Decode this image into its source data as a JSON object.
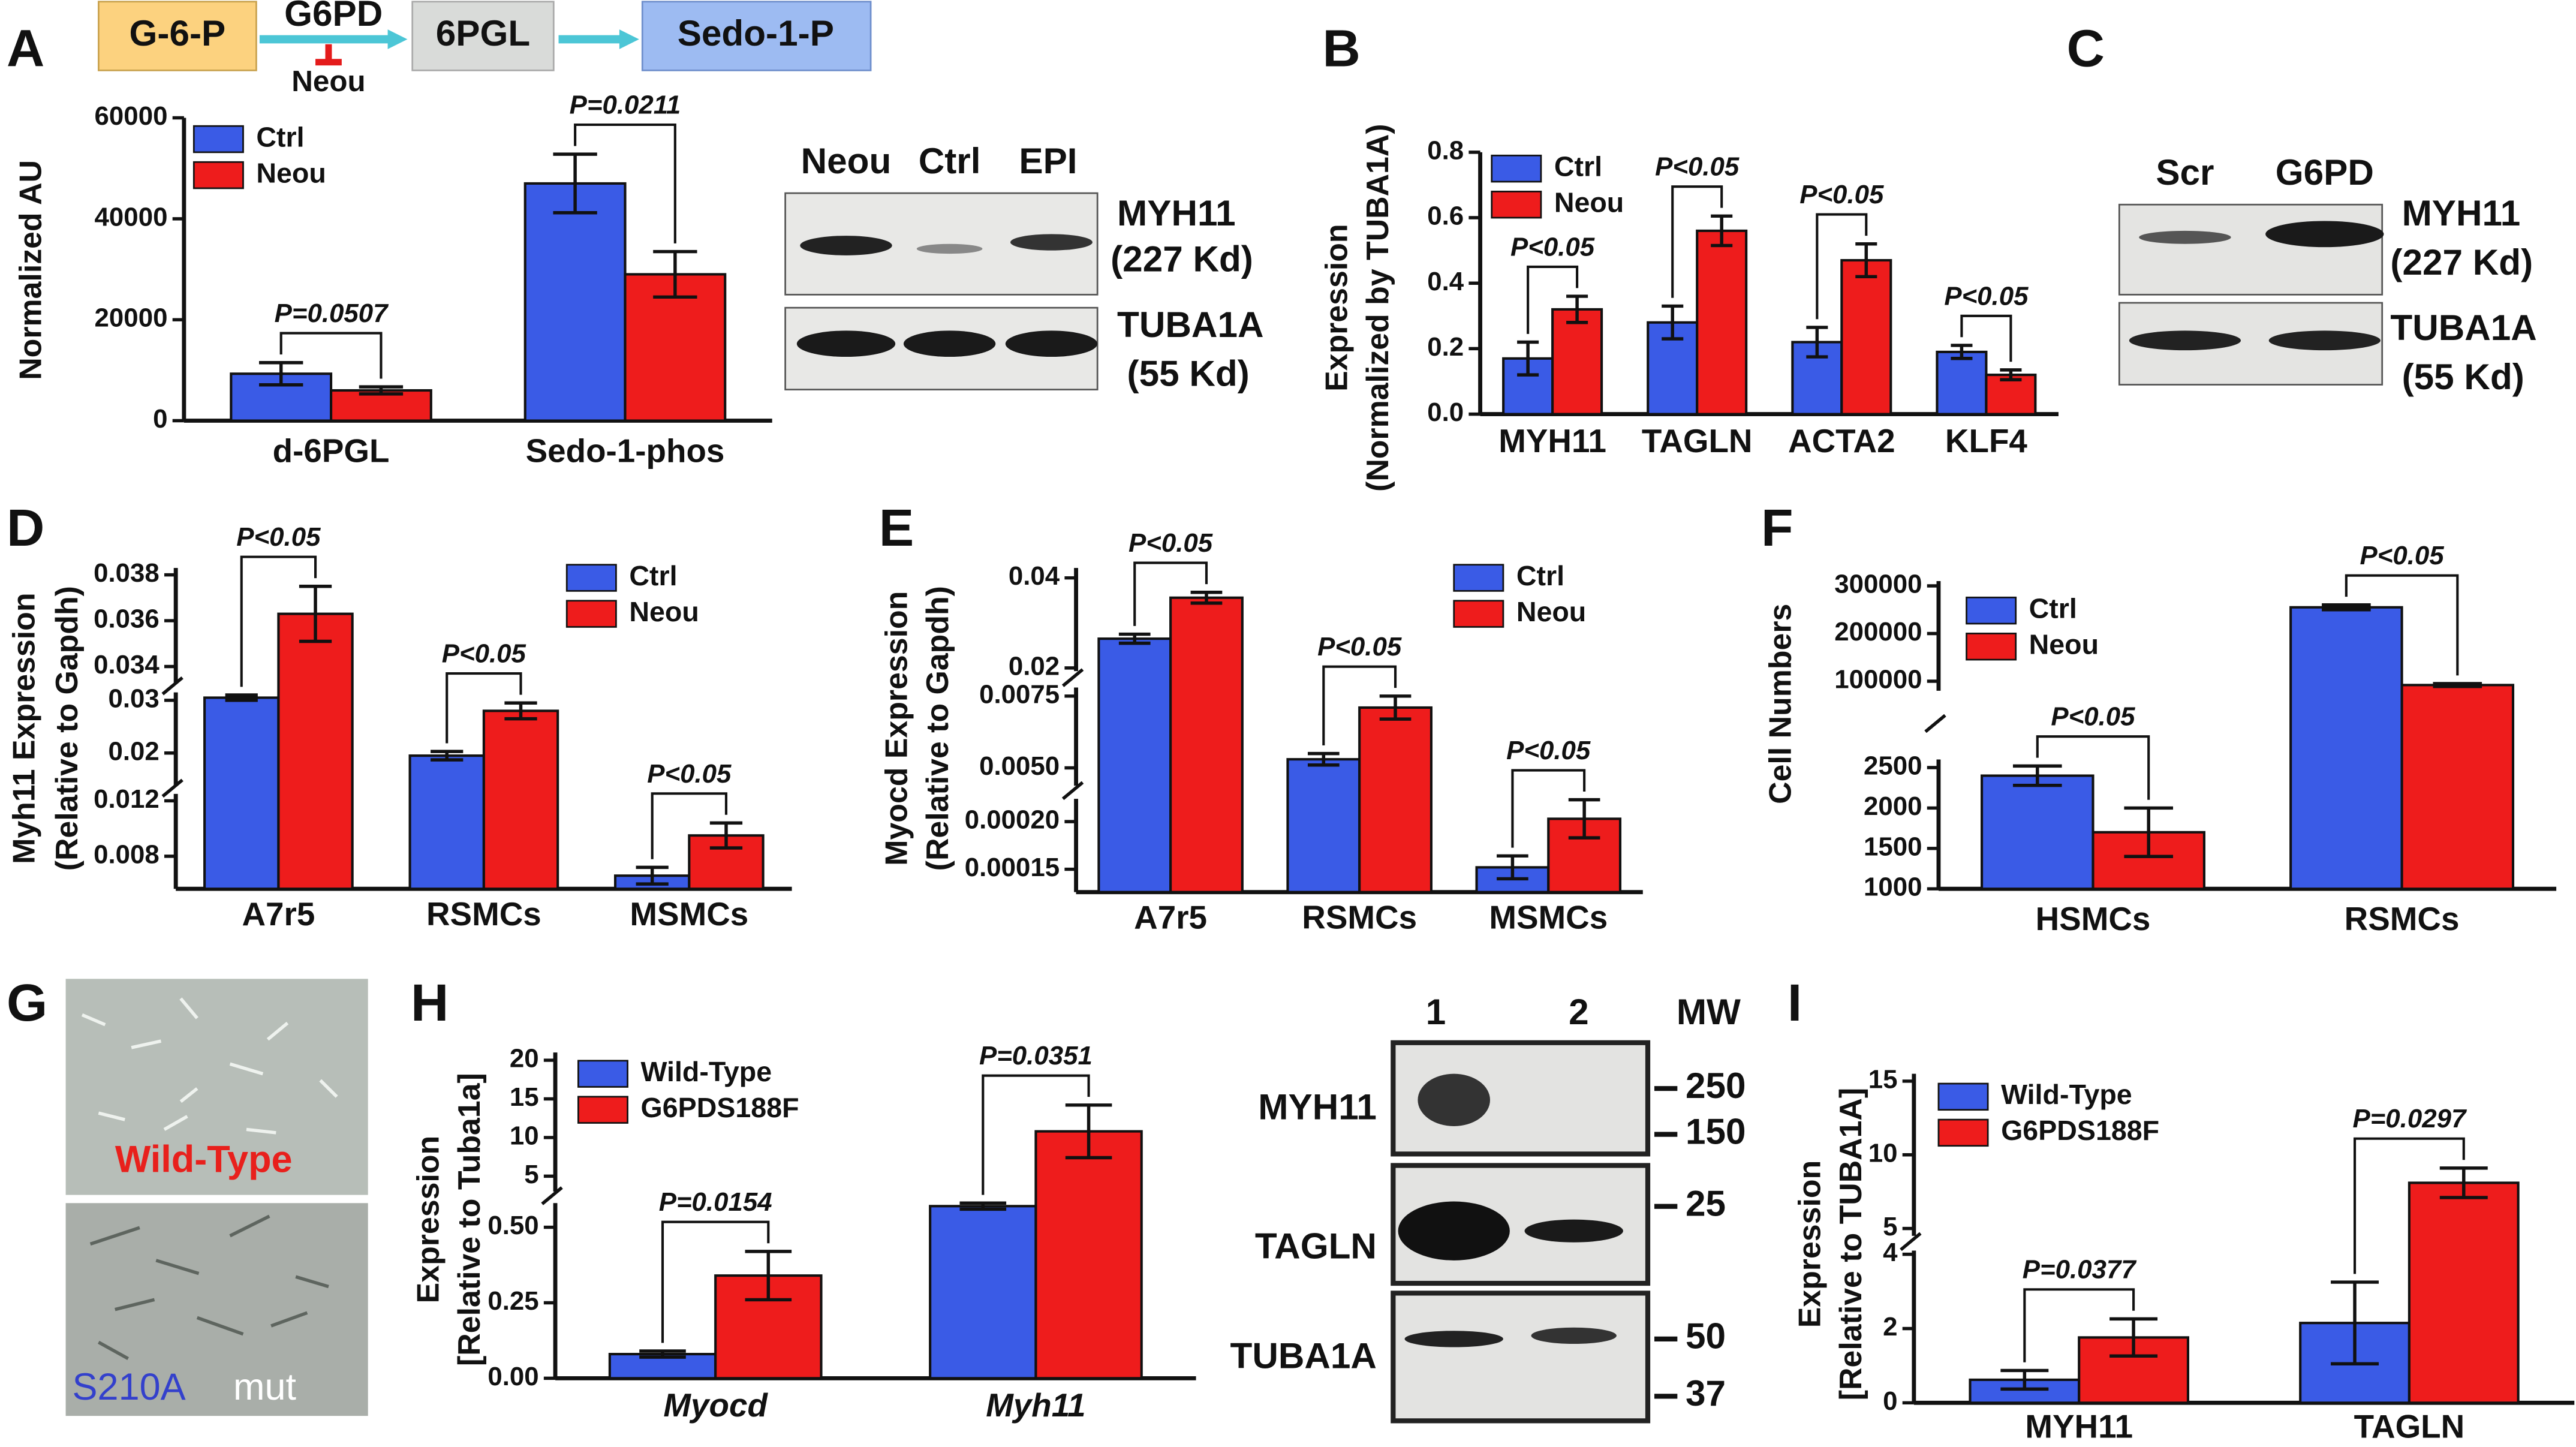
{
  "panel_labels": [
    "A",
    "B",
    "C",
    "D",
    "E",
    "F",
    "G",
    "H",
    "I"
  ],
  "pathway": {
    "nodes": [
      "G-6-P",
      "6PGL",
      "Sedo-1-P"
    ],
    "enzyme": "G6PD",
    "inhibitor": "Neou"
  },
  "blots": [
    {
      "lanes": [
        "Neou",
        "Ctrl",
        "EPI"
      ],
      "labels": [
        "MYH11",
        "(227 Kd)",
        "TUBA1A",
        "(55 Kd)"
      ]
    },
    {
      "lanes": [
        "Scr",
        "G6PD"
      ],
      "labels": [
        "MYH11",
        "(227 Kd)",
        "TUBA1A",
        "(55 Kd)"
      ]
    },
    {
      "lanes": [
        "1",
        "2"
      ],
      "mw_title": "MW",
      "labels": [
        "MYH11",
        "TAGLN",
        "TUBA1A"
      ],
      "mw_markers": [
        250,
        150,
        25,
        50,
        37
      ]
    }
  ],
  "micrographs": {
    "top": "Wild-Type",
    "bottom": [
      "S210A",
      "mut"
    ]
  },
  "chart_data": [
    {
      "type": "bar",
      "ylabel": [
        "Normalized AU"
      ],
      "categories": [
        "d-6PGL",
        "Sedo-1-phos"
      ],
      "series": [
        {
          "name": "Ctrl",
          "color": "#3a5be6",
          "values": [
            9300,
            47000
          ],
          "errors": [
            2200,
            5800
          ]
        },
        {
          "name": "Neou",
          "color": "#ee1c1c",
          "values": [
            6000,
            29000
          ],
          "errors": [
            700,
            4500
          ]
        }
      ],
      "ylim": [
        0,
        60000
      ],
      "yticks": [
        0,
        20000,
        40000,
        60000
      ],
      "annotations": [
        "P=0.0507",
        "P=0.0211"
      ]
    },
    {
      "type": "bar",
      "ylabel": [
        "Expression",
        "(Normalized by TUBA1A)"
      ],
      "categories": [
        "MYH11",
        "TAGLN",
        "ACTA2",
        "KLF4"
      ],
      "series": [
        {
          "name": "Ctrl",
          "color": "#3a5be6",
          "values": [
            0.17,
            0.28,
            0.22,
            0.19
          ],
          "errors": [
            0.05,
            0.05,
            0.045,
            0.02
          ]
        },
        {
          "name": "Neou",
          "color": "#ee1c1c",
          "values": [
            0.32,
            0.56,
            0.47,
            0.12
          ],
          "errors": [
            0.04,
            0.045,
            0.05,
            0.015
          ]
        }
      ],
      "ylim": [
        0,
        0.8
      ],
      "yticks": [
        {
          "value": 0,
          "label": "0.0"
        },
        0.2,
        0.4,
        0.6,
        0.8
      ],
      "annotations": [
        "P<0.05",
        "P<0.05",
        "P<0.05",
        "P<0.05"
      ]
    },
    {
      "type": "bar",
      "ylabel": [
        "Myh11 Expression",
        "(Relative to Gapdh)"
      ],
      "categories": [
        "A7r5",
        "RSMCs",
        "MSMCs"
      ],
      "series": [
        {
          "name": "Ctrl",
          "color": "#3a5be6",
          "values": [
            0.0305,
            0.0195,
            0.0066
          ],
          "errors": [
            0.0005,
            0.0008,
            0.0006
          ]
        },
        {
          "name": "Neou",
          "color": "#ee1c1c",
          "values": [
            0.0363,
            0.028,
            0.0095
          ],
          "errors": [
            0.0012,
            0.0015,
            0.0009
          ]
        }
      ],
      "y_segments": [
        {
          "ylim": [
            0.00565,
            0.0125
          ],
          "yticks": [
            0.008,
            0.012
          ]
        },
        {
          "ylim": [
            0.0138,
            0.0315
          ],
          "yticks": [
            0.02,
            0.03
          ]
        },
        {
          "ylim": [
            0.0333,
            0.0383
          ],
          "yticks": [
            0.034,
            0.036,
            0.038
          ]
        }
      ],
      "annotations": [
        "P<0.05",
        "P<0.05",
        "P<0.05"
      ]
    },
    {
      "type": "bar",
      "ylabel": [
        "Myocd Expression",
        "(Relative to Gapdh)"
      ],
      "categories": [
        "A7r5",
        "RSMCs",
        "MSMCs"
      ],
      "series": [
        {
          "name": "Ctrl",
          "color": "#3a5be6",
          "values": [
            0.0265,
            0.0053,
            0.000152
          ],
          "errors": [
            0.001,
            0.0002,
            1.2e-05
          ]
        },
        {
          "name": "Neou",
          "color": "#ee1c1c",
          "values": [
            0.0356,
            0.0071,
            0.000203
          ],
          "errors": [
            0.0012,
            0.0004,
            2e-05
          ]
        }
      ],
      "y_segments": [
        {
          "ylim": [
            0.000126,
            0.000224
          ],
          "yticks": [
            0.00015,
            {
              "value": 0.0002,
              "label": "0.00020"
            }
          ]
        },
        {
          "ylim": [
            0.00438,
            0.0078
          ],
          "yticks": [
            {
              "value": 0.005,
              "label": "0.0050"
            },
            0.0075
          ]
        },
        {
          "ylim": [
            0.0193,
            0.0422
          ],
          "yticks": [
            0.02,
            0.04
          ]
        }
      ],
      "annotations": [
        "P<0.05",
        "P<0.05",
        "P<0.05"
      ]
    },
    {
      "type": "bar",
      "ylabel": [
        "Cell Numbers"
      ],
      "categories": [
        "HSMCs",
        "RSMCs"
      ],
      "series": [
        {
          "name": "Ctrl",
          "color": "#3a5be6",
          "values": [
            2400,
            255000
          ],
          "errors": [
            120,
            5000
          ]
        },
        {
          "name": "Neou",
          "color": "#ee1c1c",
          "values": [
            1700,
            92000
          ],
          "errors": [
            300,
            3000
          ]
        }
      ],
      "y_segments": [
        {
          "ylim": [
            1000,
            2600
          ],
          "yticks": [
            1000,
            1500,
            2000,
            2500
          ]
        },
        {
          "ylim": [
            80000,
            310000
          ],
          "yticks": [
            100000,
            200000,
            300000
          ]
        }
      ],
      "annotations": [
        "P<0.05",
        "P<0.05"
      ]
    },
    {
      "type": "bar",
      "ylabel": [
        "Expression",
        "[Relative to Tuba1a]"
      ],
      "categories": [
        "Myocd",
        "Myh11"
      ],
      "category_font_style": "italic",
      "series": [
        {
          "name": "Wild-Type",
          "color": "#3a5be6",
          "values": [
            0.08,
            0.57
          ],
          "errors": [
            0.01,
            0.01
          ]
        },
        {
          "name": "G6PDS188F",
          "color": "#ee1c1c",
          "values": [
            0.34,
            10.8
          ],
          "errors": [
            0.08,
            3.4
          ]
        }
      ],
      "y_segments": [
        {
          "ylim": [
            0,
            0.58
          ],
          "yticks": [
            {
              "value": 0,
              "label": "0.00"
            },
            0.25,
            {
              "value": 0.5,
              "label": "0.50"
            }
          ]
        },
        {
          "ylim": [
            3,
            21
          ],
          "yticks": [
            5,
            10,
            15,
            20
          ]
        }
      ],
      "annotations": [
        "P=0.0154",
        "P=0.0351"
      ]
    },
    {
      "type": "bar",
      "ylabel": [
        "Expression",
        "[Relative to TUBA1A]"
      ],
      "categories": [
        "MYH11",
        "TAGLN"
      ],
      "series": [
        {
          "name": "Wild-Type",
          "color": "#3a5be6",
          "values": [
            0.62,
            2.15
          ],
          "errors": [
            0.25,
            1.1
          ]
        },
        {
          "name": "G6PDS188F",
          "color": "#ee1c1c",
          "values": [
            1.76,
            8.1
          ],
          "errors": [
            0.5,
            1.0
          ]
        }
      ],
      "y_segments": [
        {
          "ylim": [
            0,
            4.1
          ],
          "yticks": [
            0,
            2,
            4
          ]
        },
        {
          "ylim": [
            4.5,
            15.5
          ],
          "yticks": [
            5,
            10,
            15
          ]
        }
      ],
      "annotations": [
        "P=0.0377",
        "P=0.0297"
      ]
    }
  ]
}
